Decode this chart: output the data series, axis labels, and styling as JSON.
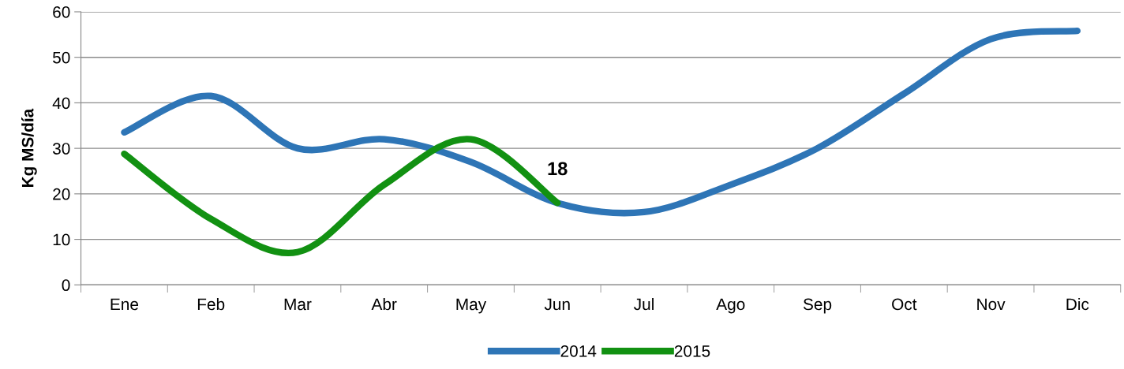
{
  "chart_data": {
    "type": "line",
    "ylabel": "Kg MS/día",
    "categories": [
      "Ene",
      "Feb",
      "Mar",
      "Abr",
      "May",
      "Jun",
      "Jul",
      "Ago",
      "Sep",
      "Oct",
      "Nov",
      "Dic"
    ],
    "series": [
      {
        "name": "2014",
        "color": "#2e75b6",
        "values": [
          33.5,
          41.5,
          30,
          32,
          27,
          18,
          16,
          22,
          30,
          42,
          54,
          55.8
        ]
      },
      {
        "name": "2015",
        "color": "#129112",
        "values": [
          28.8,
          14.5,
          7.2,
          22,
          32,
          18,
          null,
          null,
          null,
          null,
          null,
          null
        ],
        "value_labels": [
          null,
          null,
          null,
          null,
          null,
          "18",
          null,
          null,
          null,
          null,
          null,
          null
        ]
      }
    ],
    "ylim": [
      0,
      60
    ],
    "yticks": [
      0,
      10,
      20,
      30,
      40,
      50,
      60
    ],
    "grid": "y",
    "legend": "bottom",
    "marker": "none",
    "line_style": "solid"
  }
}
